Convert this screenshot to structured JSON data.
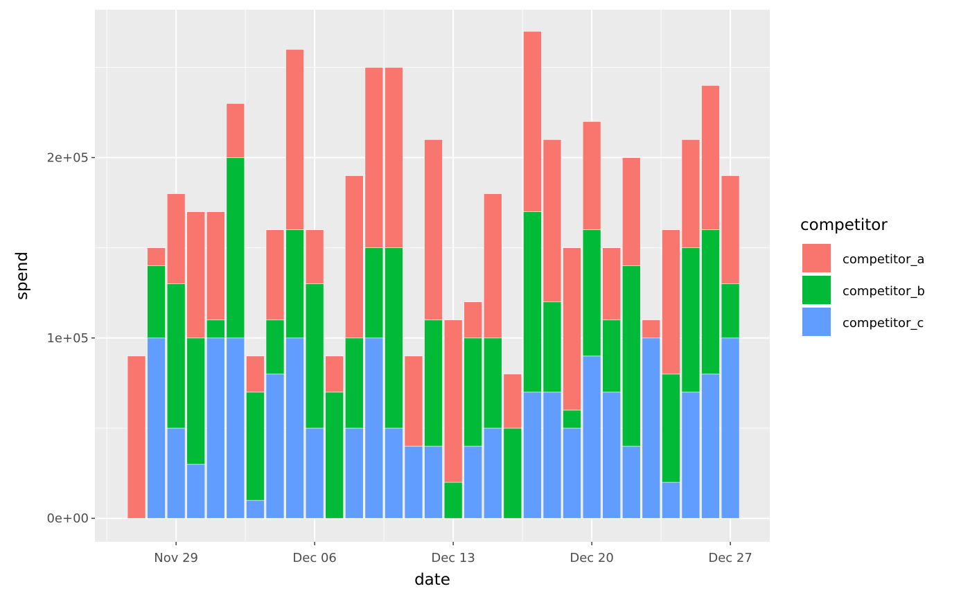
{
  "chart_data": {
    "type": "bar",
    "stacked": true,
    "xlabel": "date",
    "ylabel": "spend",
    "x_start": "Nov 27",
    "x_ticks": [
      "Nov 29",
      "Dec 06",
      "Dec 13",
      "Dec 20",
      "Dec 27"
    ],
    "y_ticks": [
      "0e+00",
      "1e+05",
      "2e+05"
    ],
    "ylim": [
      -13000,
      282000
    ],
    "grid": true,
    "legend": {
      "title": "competitor",
      "position": "right",
      "items": [
        "competitor_a",
        "competitor_b",
        "competitor_c"
      ]
    },
    "categories": [
      "Nov 27",
      "Nov 28",
      "Nov 29",
      "Nov 30",
      "Dec 01",
      "Dec 02",
      "Dec 03",
      "Dec 04",
      "Dec 05",
      "Dec 06",
      "Dec 07",
      "Dec 08",
      "Dec 09",
      "Dec 10",
      "Dec 11",
      "Dec 12",
      "Dec 13",
      "Dec 14",
      "Dec 15",
      "Dec 16",
      "Dec 17",
      "Dec 18",
      "Dec 19",
      "Dec 20",
      "Dec 21",
      "Dec 22",
      "Dec 23",
      "Dec 24",
      "Dec 25",
      "Dec 26",
      "Dec 27"
    ],
    "series": [
      {
        "name": "competitor_a",
        "color": "#F8766D",
        "values": [
          90000,
          10000,
          50000,
          70000,
          60000,
          30000,
          20000,
          50000,
          100000,
          30000,
          20000,
          90000,
          100000,
          100000,
          50000,
          100000,
          90000,
          20000,
          80000,
          30000,
          100000,
          90000,
          90000,
          60000,
          40000,
          60000,
          10000,
          80000,
          60000,
          80000,
          60000
        ]
      },
      {
        "name": "competitor_b",
        "color": "#00BA38",
        "values": [
          0,
          40000,
          80000,
          70000,
          10000,
          100000,
          60000,
          30000,
          60000,
          80000,
          70000,
          50000,
          50000,
          100000,
          0,
          70000,
          20000,
          60000,
          50000,
          50000,
          100000,
          50000,
          10000,
          70000,
          40000,
          100000,
          0,
          60000,
          80000,
          80000,
          30000
        ]
      },
      {
        "name": "competitor_c",
        "color": "#619CFF",
        "values": [
          0,
          100000,
          50000,
          30000,
          100000,
          100000,
          10000,
          80000,
          100000,
          50000,
          0,
          50000,
          100000,
          50000,
          40000,
          40000,
          0,
          40000,
          50000,
          0,
          70000,
          70000,
          50000,
          90000,
          70000,
          40000,
          100000,
          20000,
          70000,
          80000,
          100000
        ]
      }
    ]
  }
}
